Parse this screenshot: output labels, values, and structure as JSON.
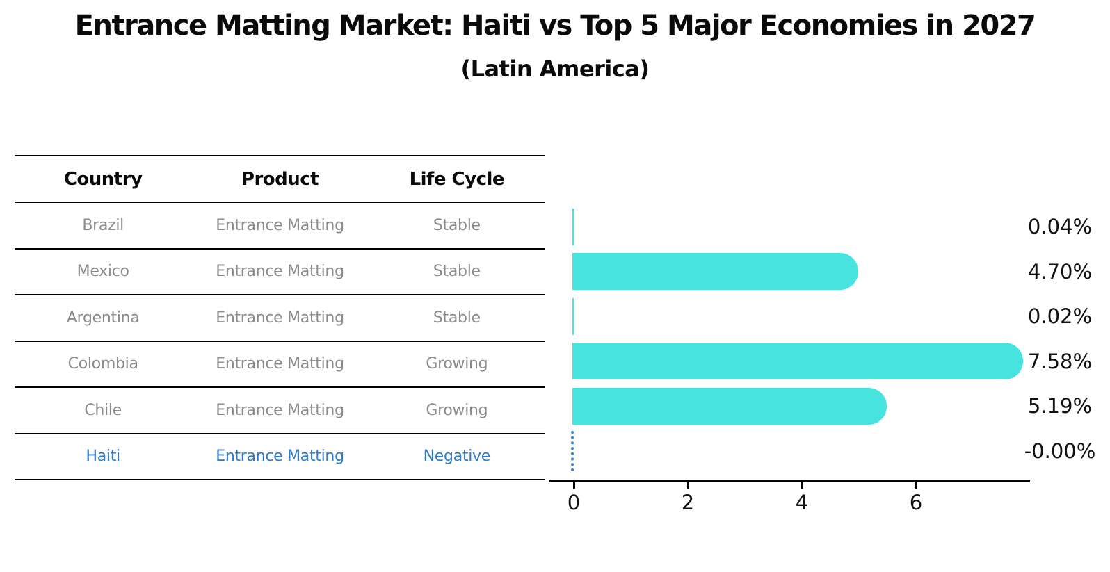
{
  "header": {
    "title": "Entrance Matting Market: Haiti vs Top 5 Major Economies in 2027",
    "subtitle": "(Latin America)"
  },
  "table": {
    "headers": [
      "Country",
      "Product",
      "Life Cycle"
    ],
    "rows": [
      {
        "country": "Brazil",
        "product": "Entrance Matting",
        "life_cycle": "Stable"
      },
      {
        "country": "Mexico",
        "product": "Entrance Matting",
        "life_cycle": "Stable"
      },
      {
        "country": "Argentina",
        "product": "Entrance Matting",
        "life_cycle": "Stable"
      },
      {
        "country": "Colombia",
        "product": "Entrance Matting",
        "life_cycle": "Growing"
      },
      {
        "country": "Chile",
        "product": "Entrance Matting",
        "life_cycle": "Growing"
      },
      {
        "country": "Haiti",
        "product": "Entrance Matting",
        "life_cycle": "Negative"
      }
    ],
    "highlight_row": "Haiti"
  },
  "chart_data": {
    "type": "bar",
    "orientation": "horizontal",
    "title": "Entrance Matting Market: Haiti vs Top 5 Major Economies in 2027",
    "subtitle": "(Latin America)",
    "categories": [
      "Brazil",
      "Mexico",
      "Argentina",
      "Colombia",
      "Chile",
      "Haiti"
    ],
    "values": [
      0.04,
      4.7,
      0.02,
      7.58,
      5.19,
      -0.0
    ],
    "value_labels": [
      "0.04%",
      "4.70%",
      "0.02%",
      "7.58%",
      "5.19%",
      "-0.00%"
    ],
    "x_ticks": [
      0,
      2,
      4,
      6
    ],
    "xlim": [
      0,
      8.0
    ],
    "xlabel": "",
    "ylabel": "",
    "grid": false,
    "legend": "none",
    "bar_color": "#46e3df",
    "highlight_index": 5,
    "highlight_style": "dotted-zero-line",
    "highlight_color": "#2e7bc9"
  },
  "colors": {
    "background": "#ffffff",
    "bar": "#46e3df",
    "table_text": "#8b8b8b",
    "heading_text": "#0a0a0a",
    "highlight_blue": "#2e7bc9",
    "axis": "#000000"
  }
}
